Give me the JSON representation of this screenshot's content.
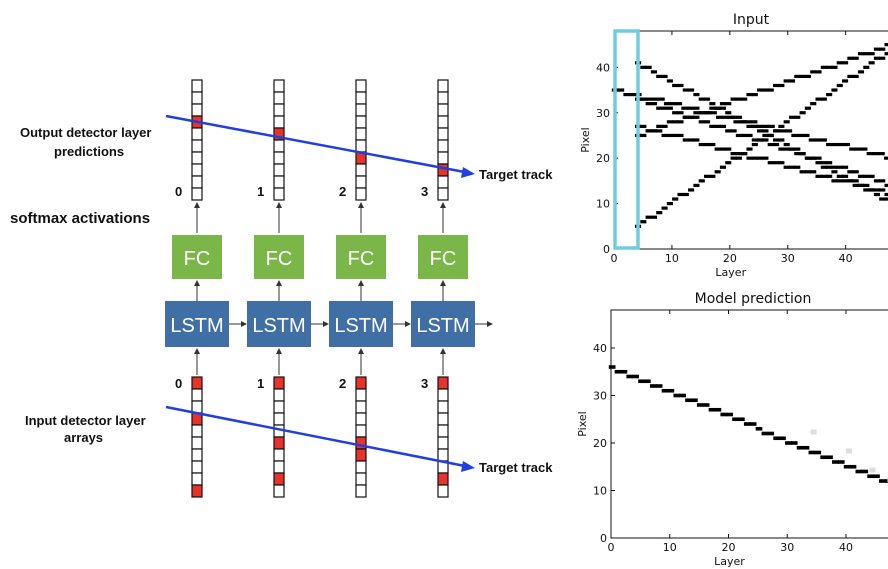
{
  "diagram": {
    "output_label_line1": "Output detector layer",
    "output_label_line2": "predictions",
    "softmax_label": "softmax activations",
    "input_label_line1": "Input detector layer",
    "input_label_line2": "arrays",
    "target_track_label": "Target track",
    "fc_label": "FC",
    "lstm_label": "LSTM",
    "steps": [
      "0",
      "1",
      "2",
      "3"
    ],
    "colors": {
      "fc": "#7ab648",
      "lstm": "#3f6fa5",
      "cell_on": "#e8332a",
      "track_line": "#1f3fe0"
    },
    "output_active_cells": [
      3,
      4,
      6,
      7
    ],
    "input_active_cells": [
      [
        0,
        3,
        9
      ],
      [
        0,
        5,
        8
      ],
      [
        0,
        5,
        6
      ],
      [
        0,
        8
      ]
    ]
  },
  "charts": {
    "input": {
      "title": "Input",
      "xlabel": "Layer",
      "ylabel": "Pixel",
      "xticks": [
        "0",
        "10",
        "20",
        "30",
        "40"
      ],
      "yticks": [
        "0",
        "10",
        "20",
        "30",
        "40"
      ],
      "highlight_color": "#6fcde0"
    },
    "prediction": {
      "title": "Model prediction",
      "xlabel": "Layer",
      "ylabel": "Pixel",
      "xticks": [
        "0",
        "10",
        "20",
        "30",
        "40"
      ],
      "yticks": [
        "0",
        "10",
        "20",
        "30",
        "40"
      ]
    }
  },
  "chart_data": [
    {
      "type": "heatmap",
      "title": "Input",
      "xlabel": "Layer",
      "ylabel": "Pixel",
      "xlim": [
        0,
        48
      ],
      "ylim": [
        0,
        48
      ],
      "tracks": [
        {
          "x": [
            0,
            48
          ],
          "y": [
            35,
            20
          ]
        },
        {
          "x": [
            4,
            48
          ],
          "y": [
            41,
            10
          ]
        },
        {
          "x": [
            4,
            48
          ],
          "y": [
            25,
            45
          ]
        },
        {
          "x": [
            4,
            48
          ],
          "y": [
            33,
            14
          ]
        },
        {
          "x": [
            4,
            48
          ],
          "y": [
            5,
            44
          ]
        },
        {
          "x": [
            4,
            48
          ],
          "y": [
            27,
            12
          ]
        }
      ]
    },
    {
      "type": "heatmap",
      "title": "Model prediction",
      "xlabel": "Layer",
      "ylabel": "Pixel",
      "xlim": [
        0,
        48
      ],
      "ylim": [
        0,
        48
      ],
      "tracks": [
        {
          "x": [
            0,
            48
          ],
          "y": [
            36,
            11
          ]
        }
      ]
    }
  ]
}
